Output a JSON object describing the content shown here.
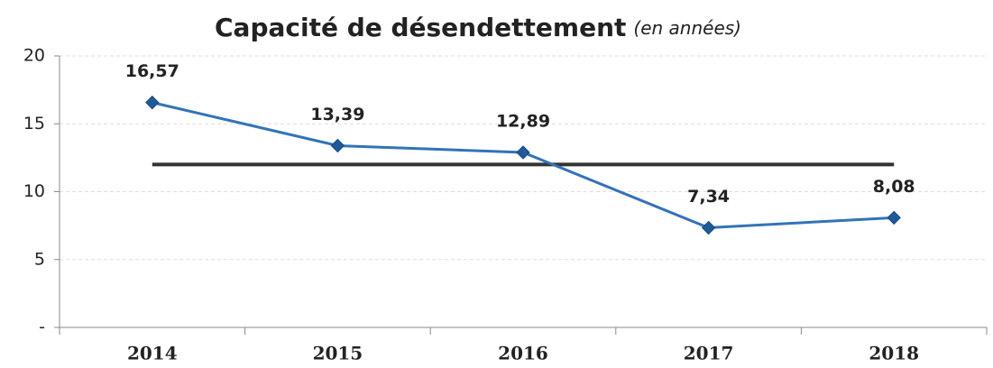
{
  "chart_data": {
    "type": "line",
    "title": "Capacité de désendettement",
    "subtitle": "(en années)",
    "categories": [
      "2014",
      "2015",
      "2016",
      "2017",
      "2018"
    ],
    "series": [
      {
        "color": "#3373b8",
        "marker_color": "#1f5a99",
        "values": [
          16.57,
          13.39,
          12.89,
          7.34,
          8.08
        ],
        "value_labels": [
          "16,57",
          "13,39",
          "12,89",
          "7,34",
          "8,08"
        ]
      }
    ],
    "reference_line": {
      "value": 12,
      "color": "#333333"
    },
    "ylim": [
      0,
      20
    ],
    "yticks": [
      {
        "value": 0,
        "label": "-"
      },
      5,
      10,
      15,
      20
    ],
    "grid": true
  }
}
